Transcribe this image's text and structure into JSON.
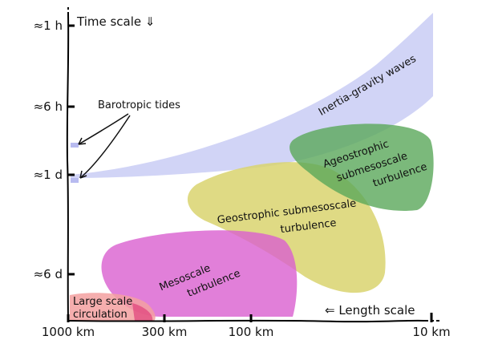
{
  "time_axis": {
    "title": "Time scale ⇓",
    "ticks": [
      "≈1 h",
      "≈6 h",
      "≈1 d",
      "≈6 d"
    ]
  },
  "length_axis": {
    "title": "⇐ Length scale",
    "ticks": [
      "1000 km",
      "300 km",
      "100 km",
      "10 km"
    ]
  },
  "regions": {
    "inertia_gravity": "Inertia-gravity waves",
    "ageostrophic": [
      "Ageostrophic",
      "submesoscale",
      "turbulence"
    ],
    "geostrophic": [
      "Geostrophic submesoscale",
      "turbulence"
    ],
    "mesoscale": [
      "Mesoscale",
      "turbulence"
    ],
    "large_scale": [
      "Large scale",
      "circulation"
    ]
  },
  "annotation": {
    "barotropic_tides": "Barotropic tides"
  },
  "colors": {
    "inertia_gravity": "#c9ccf5",
    "ageostrophic": "#5aa85a",
    "geostrophic": "#d9d46e",
    "mesoscale": "#d95fd0",
    "large_scale": "#f3a0a0",
    "axis": "#000000"
  }
}
